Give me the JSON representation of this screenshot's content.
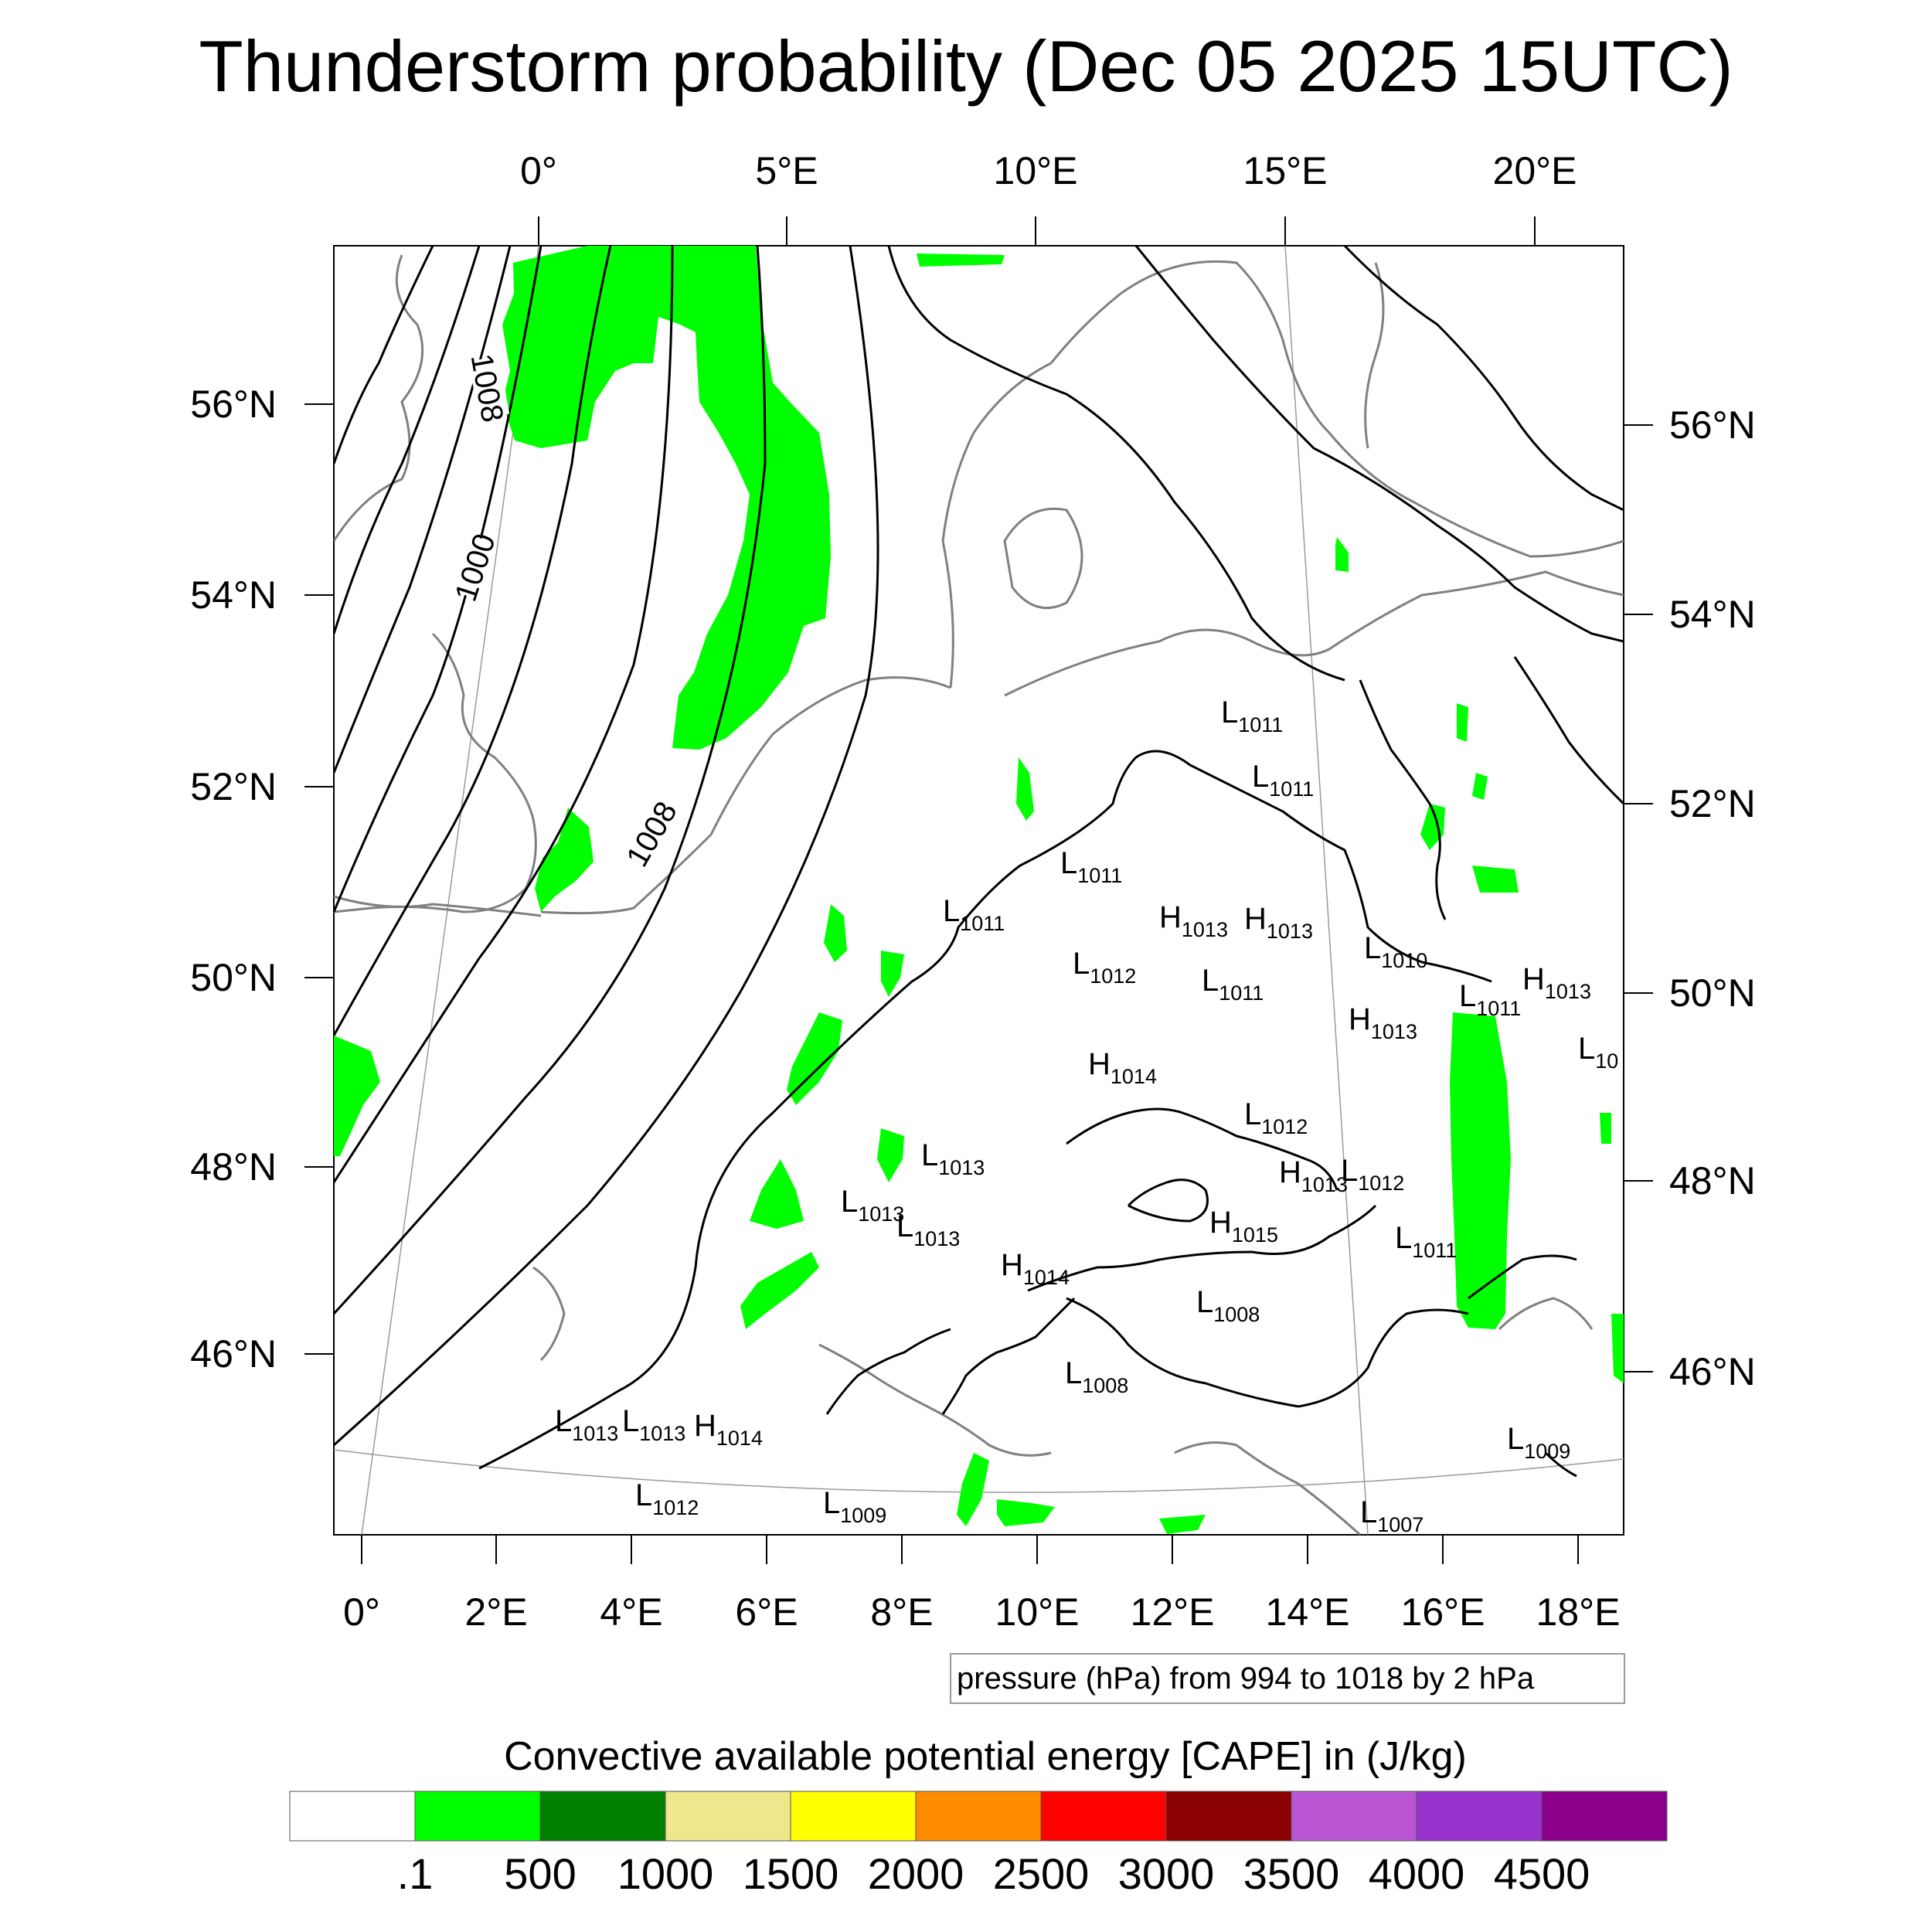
{
  "title": "Thunderstorm probability (Dec 05 2025 15UTC)",
  "axes": {
    "top_lon": [
      "0°",
      "5°E",
      "10°E",
      "15°E",
      "20°E"
    ],
    "bottom_lon": [
      "0°",
      "2°E",
      "4°E",
      "6°E",
      "8°E",
      "10°E",
      "12°E",
      "14°E",
      "16°E",
      "18°E"
    ],
    "left_lat": [
      "56°N",
      "54°N",
      "52°N",
      "50°N",
      "48°N",
      "46°N"
    ],
    "right_lat": [
      "56°N",
      "54°N",
      "52°N",
      "50°N",
      "48°N",
      "46°N"
    ]
  },
  "isobar_labels": [
    "1000",
    "1008",
    "1008"
  ],
  "pressure_systems": [
    {
      "type": "L",
      "value": "1011"
    },
    {
      "type": "L",
      "value": "1011"
    },
    {
      "type": "L",
      "value": "1011"
    },
    {
      "type": "L",
      "value": "1011"
    },
    {
      "type": "L",
      "value": "1012"
    },
    {
      "type": "H",
      "value": "1013"
    },
    {
      "type": "H",
      "value": "1013"
    },
    {
      "type": "L",
      "value": "1011"
    },
    {
      "type": "L",
      "value": "1010"
    },
    {
      "type": "L",
      "value": "1011"
    },
    {
      "type": "H",
      "value": "1013"
    },
    {
      "type": "H",
      "value": "1013"
    },
    {
      "type": "L",
      "value": "10"
    },
    {
      "type": "H",
      "value": "1014"
    },
    {
      "type": "L",
      "value": "1012"
    },
    {
      "type": "L",
      "value": "1013"
    },
    {
      "type": "H",
      "value": "1013"
    },
    {
      "type": "L",
      "value": "1012"
    },
    {
      "type": "L",
      "value": "1013"
    },
    {
      "type": "L",
      "value": "1013"
    },
    {
      "type": "H",
      "value": "1015"
    },
    {
      "type": "L",
      "value": "1011"
    },
    {
      "type": "H",
      "value": "1014"
    },
    {
      "type": "L",
      "value": "1008"
    },
    {
      "type": "L",
      "value": "1008"
    },
    {
      "type": "L",
      "value": "1013"
    },
    {
      "type": "L",
      "value": "1013"
    },
    {
      "type": "H",
      "value": "1014"
    },
    {
      "type": "L",
      "value": "1012"
    },
    {
      "type": "L",
      "value": "1009"
    },
    {
      "type": "L",
      "value": "1007"
    },
    {
      "type": "L",
      "value": "1009"
    }
  ],
  "contour_note": "pressure (hPa) from 994 to 1018 by 2 hPa",
  "colorbar": {
    "title": "Convective available potential energy [CAPE] in (J/kg)",
    "colors": [
      "#ffffff",
      "#00ff00",
      "#008000",
      "#f0e68c",
      "#ffff00",
      "#ff8c00",
      "#ff0000",
      "#8b0000",
      "#ba55d3",
      "#9932cc",
      "#8b008b"
    ],
    "labels": [
      ".1",
      "500",
      "1000",
      "1500",
      "2000",
      "2500",
      "3000",
      "3500",
      "4000",
      "4500"
    ]
  },
  "cape_fill_color": "#00ff00"
}
